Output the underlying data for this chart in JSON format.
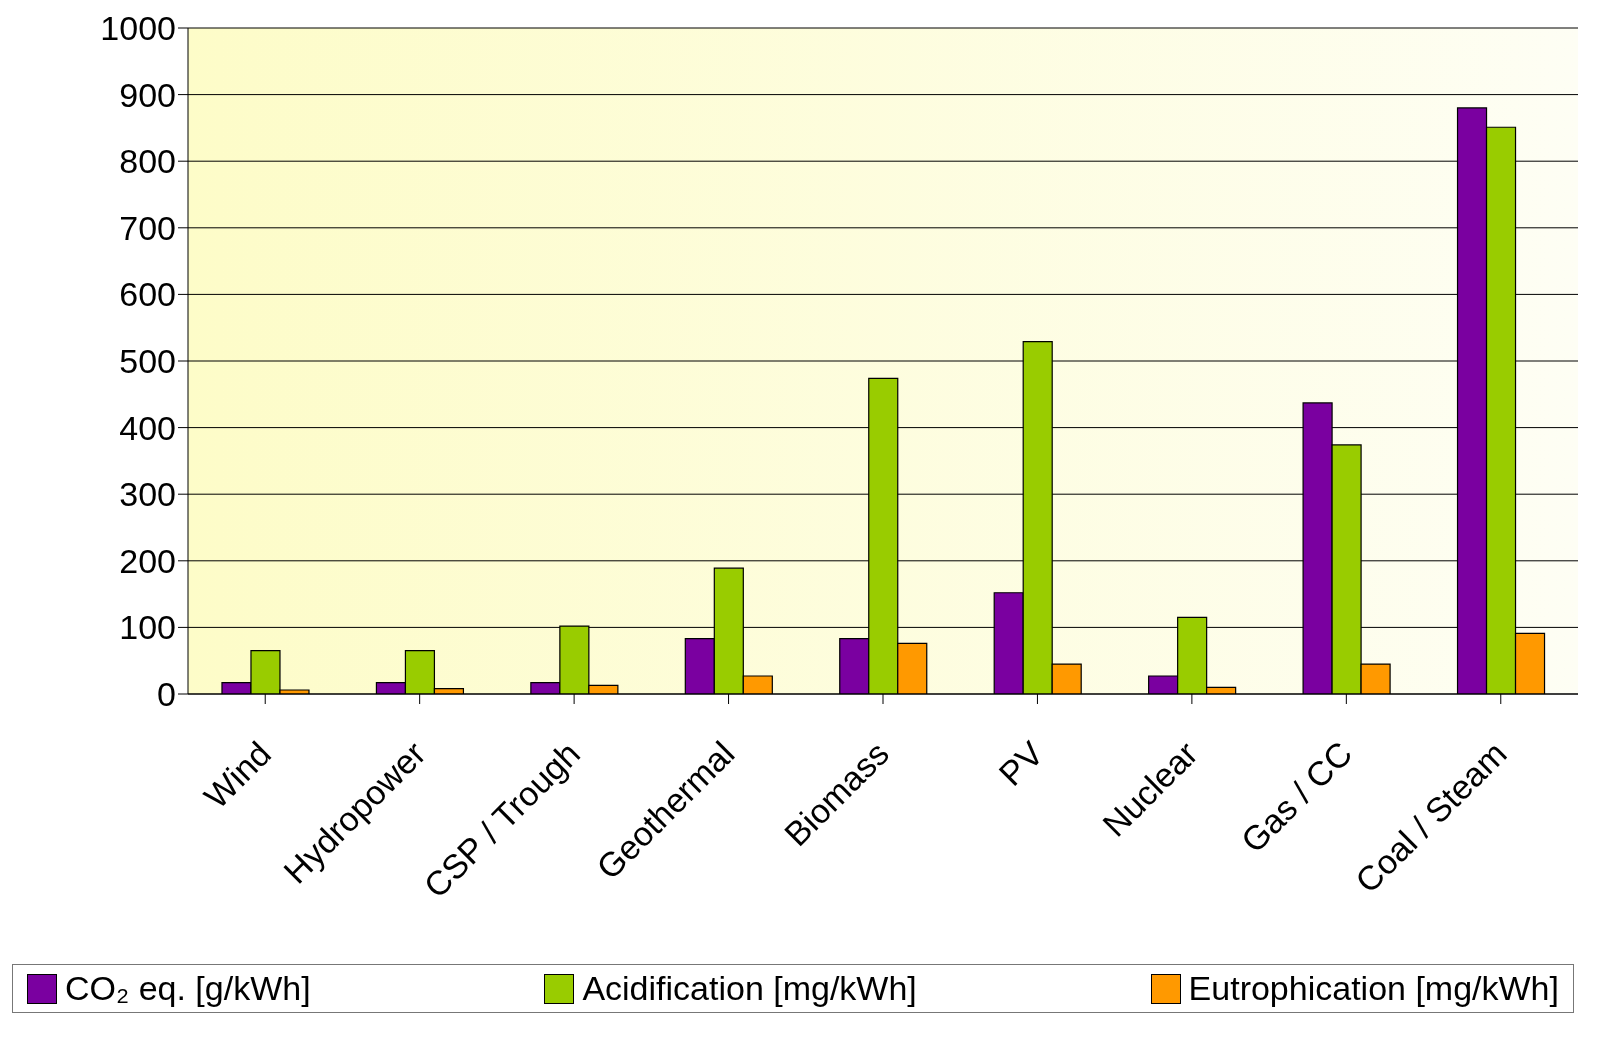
{
  "chart_data": {
    "type": "bar",
    "categories": [
      "Wind",
      "Hydropower",
      "CSP / Trough",
      "Geothermal",
      "Biomass",
      "PV",
      "Nuclear",
      "Gas / CC",
      "Coal / Steam"
    ],
    "series": [
      {
        "name": "CO₂ eq. [g/kWh]",
        "color": "#7a00a0",
        "values": [
          17,
          17,
          17,
          83,
          83,
          152,
          27,
          437,
          880
        ]
      },
      {
        "name": "Acidification [mg/kWh]",
        "color": "#99cc00",
        "values": [
          65,
          65,
          102,
          189,
          474,
          529,
          115,
          374,
          851
        ]
      },
      {
        "name": "Eutrophication [mg/kWh]",
        "color": "#ff9900",
        "values": [
          6,
          8,
          13,
          27,
          76,
          45,
          10,
          45,
          91
        ]
      }
    ],
    "ylim": [
      0,
      1000
    ],
    "yticks": [
      0,
      100,
      200,
      300,
      400,
      500,
      600,
      700,
      800,
      900,
      1000
    ],
    "grid": "y",
    "legend": "bottom"
  }
}
